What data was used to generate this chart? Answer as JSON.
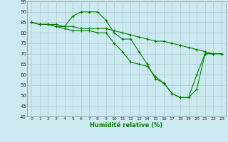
{
  "xlabel": "Humidité relative (%)",
  "xlim": [
    -0.5,
    23.5
  ],
  "ylim": [
    40,
    95
  ],
  "yticks": [
    40,
    45,
    50,
    55,
    60,
    65,
    70,
    75,
    80,
    85,
    90,
    95
  ],
  "xticks": [
    0,
    1,
    2,
    3,
    4,
    5,
    6,
    7,
    8,
    9,
    10,
    11,
    12,
    13,
    14,
    15,
    16,
    17,
    18,
    19,
    20,
    21,
    22,
    23
  ],
  "bg_color": "#cce8f0",
  "line_color": "#008000",
  "grid_color": "#aacccc",
  "series": [
    [
      85,
      84,
      84,
      83,
      83,
      88,
      90,
      90,
      90,
      86,
      80,
      77,
      77,
      71,
      65,
      58,
      56,
      51,
      49,
      49,
      60,
      70,
      70,
      70
    ],
    [
      85,
      84,
      84,
      84,
      83,
      83,
      82,
      82,
      82,
      82,
      81,
      80,
      79,
      78,
      77,
      76,
      76,
      75,
      74,
      73,
      72,
      71,
      70,
      70
    ],
    [
      85,
      84,
      84,
      83,
      82,
      81,
      81,
      81,
      80,
      80,
      75,
      71,
      66,
      65,
      64,
      59,
      56,
      51,
      49,
      49,
      53,
      70,
      70,
      70
    ]
  ],
  "figsize": [
    3.2,
    2.0
  ],
  "dpi": 100
}
